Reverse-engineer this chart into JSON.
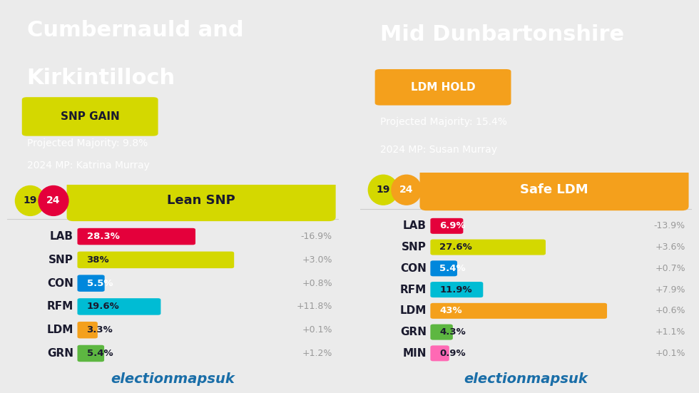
{
  "left": {
    "title_line1": "Cumbernauld and",
    "title_line2": "Kirkintilloch",
    "title_single": false,
    "badge_text": "SNP GAIN",
    "badge_color": "#d4d800",
    "badge_text_color": "#1a1a2e",
    "projected_majority": "Projected Majority: 9.8%",
    "mp_2024": "2024 MP: Katrina Murray",
    "year19": "19",
    "year24": "24",
    "year19_color": "#d4d800",
    "year24_color": "#e4003b",
    "year24_text_color": "#ffffff",
    "prediction_text": "Lean SNP",
    "prediction_color": "#d4d800",
    "prediction_text_color": "#1a1a2e",
    "parties": [
      "LAB",
      "SNP",
      "CON",
      "RFM",
      "LDM",
      "GRN"
    ],
    "values": [
      28.3,
      38.0,
      5.5,
      19.6,
      3.3,
      5.4
    ],
    "changes": [
      "-16.9%",
      "+3.0%",
      "+0.8%",
      "+11.8%",
      "+0.1%",
      "+1.2%"
    ],
    "bar_colors": [
      "#e4003b",
      "#d4d800",
      "#0087dc",
      "#00bcd4",
      "#f4a01c",
      "#5db741"
    ],
    "value_labels": [
      "28.3%",
      "38%",
      "5.5%",
      "19.6%",
      "3.3%",
      "5.4%"
    ],
    "label_colors": [
      "#ffffff",
      "#1a1a2e",
      "#ffffff",
      "#1a1a2e",
      "#1a1a2e",
      "#1a1a2e"
    ],
    "max_val": 50
  },
  "right": {
    "title_line1": "Mid Dunbartonshire",
    "title_line2": "",
    "title_single": true,
    "badge_text": "LDM HOLD",
    "badge_color": "#f4a01c",
    "badge_text_color": "#ffffff",
    "projected_majority": "Projected Majority: 15.4%",
    "mp_2024": "2024 MP: Susan Murray",
    "year19": "19",
    "year24": "24",
    "year19_color": "#d4d800",
    "year24_color": "#f4a01c",
    "year24_text_color": "#ffffff",
    "prediction_text": "Safe LDM",
    "prediction_color": "#f4a01c",
    "prediction_text_color": "#ffffff",
    "parties": [
      "LAB",
      "SNP",
      "CON",
      "RFM",
      "LDM",
      "GRN",
      "MIN"
    ],
    "values": [
      6.9,
      27.6,
      5.4,
      11.9,
      43.0,
      4.3,
      0.9
    ],
    "changes": [
      "-13.9%",
      "+3.6%",
      "+0.7%",
      "+7.9%",
      "+0.6%",
      "+1.1%",
      "+0.1%"
    ],
    "bar_colors": [
      "#e4003b",
      "#d4d800",
      "#0087dc",
      "#00bcd4",
      "#f4a01c",
      "#5db741",
      "#ff69b4"
    ],
    "value_labels": [
      "6.9%",
      "27.6%",
      "5.4%",
      "11.9%",
      "43%",
      "4.3%",
      "0.9%"
    ],
    "label_colors": [
      "#ffffff",
      "#1a1a2e",
      "#ffffff",
      "#1a1a2e",
      "#ffffff",
      "#1a1a2e",
      "#1a1a2e"
    ],
    "max_val": 50
  },
  "bg_color": "#ebebeb",
  "header_bg": "#0d1b2a",
  "header_text_color": "#ffffff",
  "party_label_color": "#1a1a2e",
  "change_color": "#999999",
  "brand_text": "electionmapsuk",
  "brand_color": "#1a6ea8"
}
